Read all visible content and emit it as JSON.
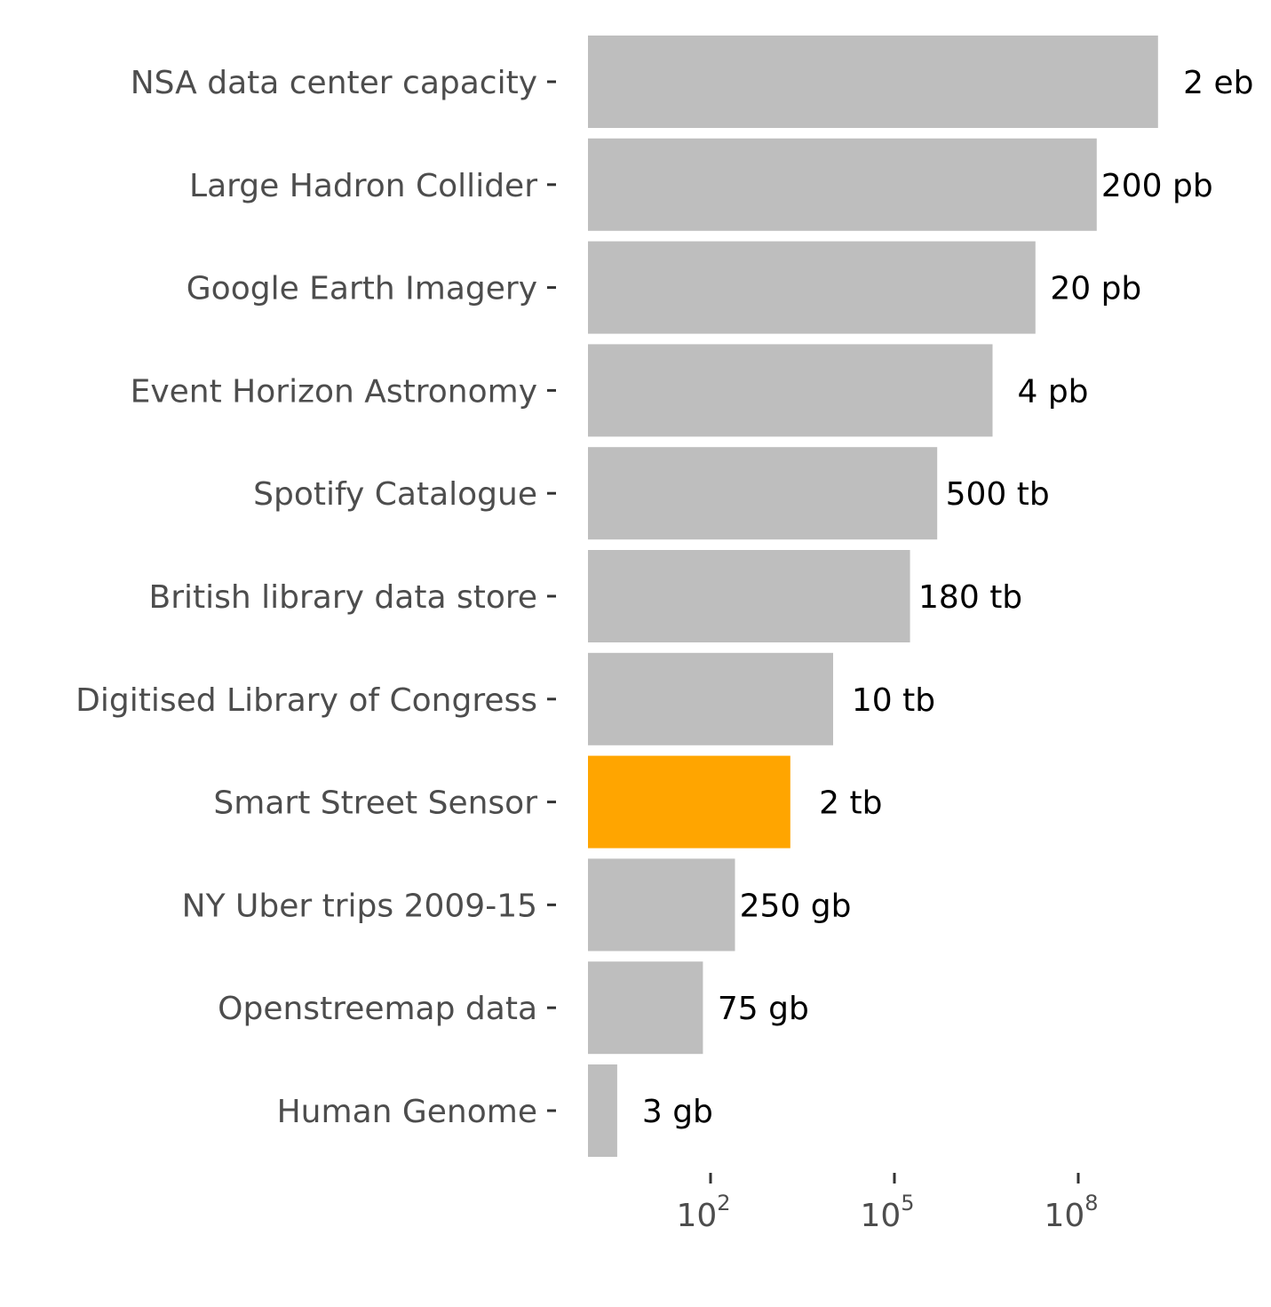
{
  "chart_data": {
    "type": "bar",
    "orientation": "horizontal",
    "x_scale": "log10",
    "x_unit": "gb",
    "categories": [
      "NSA data center capacity",
      "Large Hadron Collider",
      "Google Earth Imagery",
      "Event Horizon Astronomy",
      "Spotify Catalogue",
      "British library data store",
      "Digitised Library of Congress",
      "Smart Street Sensor",
      "NY Uber trips 2009-15",
      "Openstreemap data",
      "Human Genome"
    ],
    "values": [
      2000000000,
      200000000,
      20000000,
      4000000,
      500000,
      180000,
      10000,
      2000,
      250,
      75,
      3
    ],
    "value_labels": [
      "2 eb",
      "200 pb",
      "20 pb",
      "4 pb",
      "500 tb",
      "180 tb",
      "10 tb",
      "2 tb",
      "250 gb",
      "75 gb",
      "3 gb"
    ],
    "highlight": "Smart Street Sensor",
    "colors": {
      "bar": "#bebebe",
      "highlight": "#ffa500",
      "category_text": "#4d4d4d",
      "value_text": "#000000"
    },
    "x_ticks": [
      {
        "base": "10",
        "exp": "2",
        "value": 100
      },
      {
        "base": "10",
        "exp": "5",
        "value": 100000
      },
      {
        "base": "10",
        "exp": "8",
        "value": 100000000
      }
    ],
    "xlim": [
      1,
      2000000000
    ],
    "title": "",
    "xlabel": "",
    "ylabel": "",
    "grid": false,
    "legend": "none"
  }
}
